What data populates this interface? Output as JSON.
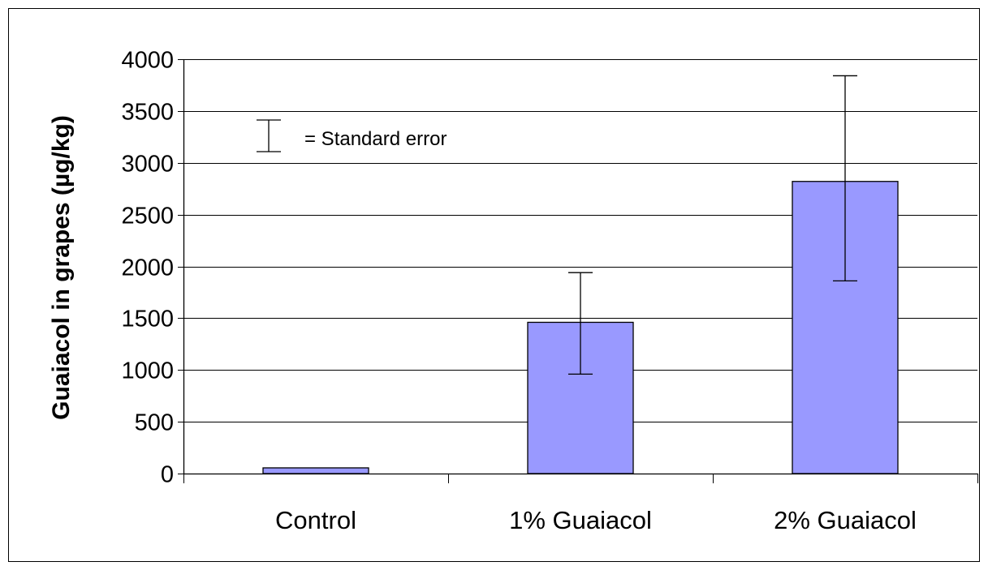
{
  "chart_data": {
    "type": "bar",
    "title": "",
    "xlabel": "",
    "ylabel": "Guaiacol in grapes (µg/kg)",
    "categories": [
      "Control",
      "1% Guaiacol",
      "2% Guaiacol"
    ],
    "series": [
      {
        "values": [
          55,
          1460,
          2820
        ],
        "error_low": [
          null,
          960,
          1860
        ],
        "error_high": [
          null,
          1940,
          3840
        ]
      }
    ],
    "ylim": [
      0,
      4000
    ],
    "yticks": [
      "0",
      "500",
      "1000",
      "1500",
      "2000",
      "2500",
      "3000",
      "3500",
      "4000"
    ],
    "grid": "horizontal",
    "legend": {
      "position": "top-left",
      "label": "= Standard error"
    },
    "colors": {
      "bar_fill": "#9999ff",
      "bar_stroke": "#000000",
      "grid": "#000000",
      "background": "#ffffff"
    }
  }
}
